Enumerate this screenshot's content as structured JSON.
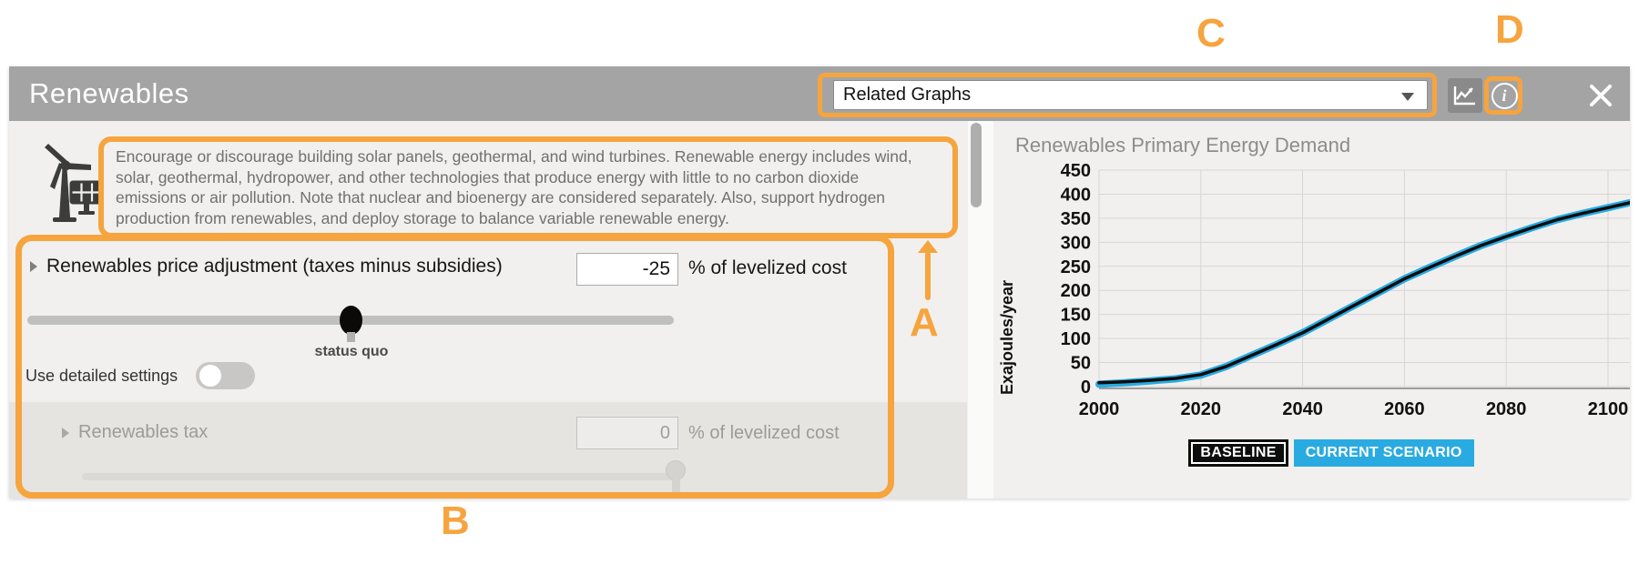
{
  "panel": {
    "title": "Renewables"
  },
  "header": {
    "related_graphs_label": "Related Graphs",
    "line_chart_icon": "line-chart-icon",
    "info_icon": "info-icon",
    "close_icon": "close-icon"
  },
  "description": {
    "lines": [
      "Encourage or discourage building solar panels, geothermal, and wind turbines. Renewable energy includes wind,",
      "solar, geothermal, hydropower, and other technologies that produce energy with little to no carbon dioxide",
      "emissions or air pollution. Note that nuclear and bioenergy are considered separately. Also, support hydrogen",
      "production from renewables, and deploy storage to balance variable renewable energy."
    ]
  },
  "controls": {
    "price_adjustment": {
      "label": "Renewables price adjustment (taxes minus subsidies)",
      "value": "-25",
      "unit": "% of levelized cost",
      "slider_annotation": "status quo"
    },
    "detailed_settings": {
      "label": "Use detailed settings",
      "state": "off"
    },
    "renewables_tax": {
      "label": "Renewables tax",
      "value": "0",
      "unit": "% of levelized cost",
      "disabled": true
    }
  },
  "annotations": {
    "a": "A",
    "b": "B",
    "c": "C",
    "d": "D",
    "color": "#F6A43E"
  },
  "chart_data": {
    "type": "line",
    "title": "Renewables Primary Energy Demand",
    "ylabel": "Exajoules/year",
    "x": [
      2000,
      2005,
      2010,
      2015,
      2020,
      2025,
      2030,
      2035,
      2040,
      2045,
      2050,
      2055,
      2060,
      2065,
      2070,
      2075,
      2080,
      2085,
      2090,
      2095,
      2100
    ],
    "series": [
      {
        "name": "BASELINE",
        "color": "#0D0D0D",
        "values": [
          8,
          10,
          13,
          17,
          25,
          42,
          65,
          88,
          112,
          140,
          168,
          196,
          224,
          248,
          271,
          293,
          312,
          330,
          347,
          360,
          372
        ]
      },
      {
        "name": "CURRENT SCENARIO",
        "color": "#29ABE2",
        "values": [
          5,
          8,
          12,
          16,
          24,
          42,
          65,
          88,
          112,
          140,
          168,
          196,
          224,
          248,
          271,
          293,
          312,
          330,
          347,
          360,
          372
        ]
      }
    ],
    "xlim": [
      2000,
      2106
    ],
    "ylim": [
      0,
      450
    ],
    "x_ticks": [
      2000,
      2020,
      2040,
      2060,
      2080,
      2100
    ],
    "y_ticks": [
      0,
      50,
      100,
      150,
      200,
      250,
      300,
      350,
      400,
      450
    ],
    "grid": true,
    "legend_position": "bottom"
  }
}
